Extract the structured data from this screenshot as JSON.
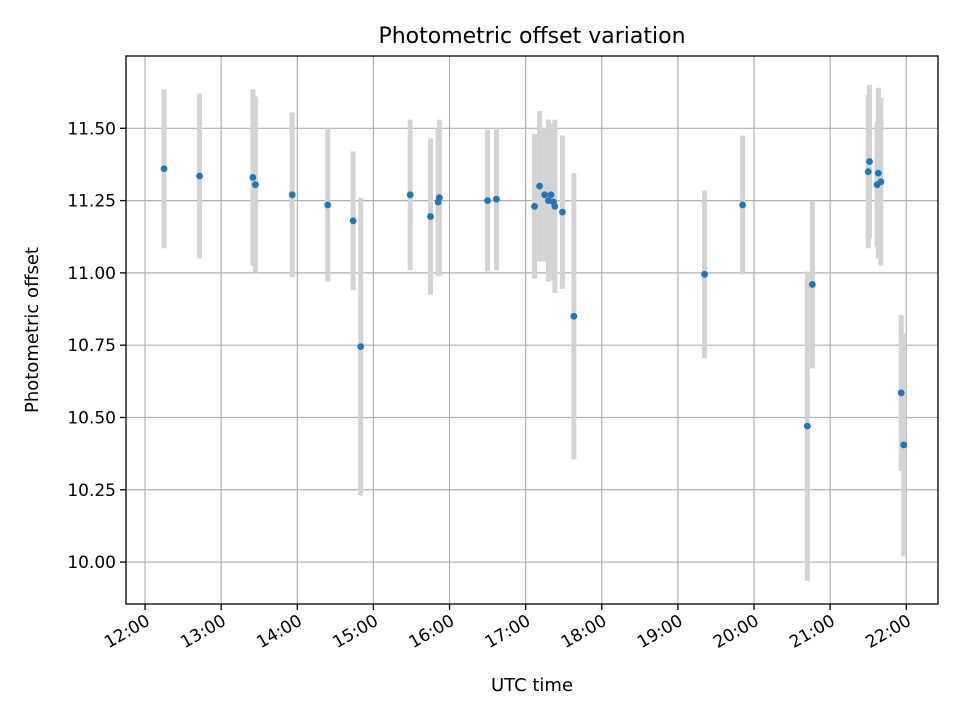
{
  "chart_data": {
    "type": "scatter",
    "title": "Photometric offset variation",
    "xlabel": "UTC time",
    "ylabel": "Photometric offset",
    "x_ticks": [
      "12:00",
      "13:00",
      "14:00",
      "15:00",
      "16:00",
      "17:00",
      "18:00",
      "19:00",
      "20:00",
      "21:00",
      "22:00"
    ],
    "y_ticks": [
      "10.00",
      "10.25",
      "10.50",
      "10.75",
      "11.00",
      "11.25",
      "11.50"
    ],
    "xlim": [
      "11:45",
      "22:25"
    ],
    "ylim": [
      9.855,
      11.75
    ],
    "grid": true,
    "point_color": "#1f77b4",
    "errorbar_color": "#d3d3d3",
    "points": [
      {
        "t": "12:15",
        "y": 11.36,
        "yerr": 0.275
      },
      {
        "t": "12:43",
        "y": 11.335,
        "yerr": 0.285
      },
      {
        "t": "13:25",
        "y": 11.33,
        "yerr": 0.305
      },
      {
        "t": "13:27",
        "y": 11.305,
        "yerr": 0.305
      },
      {
        "t": "13:56",
        "y": 11.27,
        "yerr": 0.285
      },
      {
        "t": "14:24",
        "y": 11.235,
        "yerr": 0.265
      },
      {
        "t": "14:44",
        "y": 11.18,
        "yerr": 0.24
      },
      {
        "t": "14:50",
        "y": 10.745,
        "yerr": 0.515
      },
      {
        "t": "15:29",
        "y": 11.27,
        "yerr": 0.26
      },
      {
        "t": "15:45",
        "y": 11.195,
        "yerr": 0.27
      },
      {
        "t": "15:51",
        "y": 11.245,
        "yerr": 0.255
      },
      {
        "t": "15:52",
        "y": 11.26,
        "yerr": 0.27
      },
      {
        "t": "16:30",
        "y": 11.25,
        "yerr": 0.245
      },
      {
        "t": "16:37",
        "y": 11.255,
        "yerr": 0.245
      },
      {
        "t": "17:07",
        "y": 11.23,
        "yerr": 0.25
      },
      {
        "t": "17:11",
        "y": 11.3,
        "yerr": 0.26
      },
      {
        "t": "17:15",
        "y": 11.27,
        "yerr": 0.23
      },
      {
        "t": "17:18",
        "y": 11.25,
        "yerr": 0.28
      },
      {
        "t": "17:20",
        "y": 11.27,
        "yerr": 0.23
      },
      {
        "t": "17:22",
        "y": 11.245,
        "yerr": 0.27
      },
      {
        "t": "17:23",
        "y": 11.23,
        "yerr": 0.3
      },
      {
        "t": "17:29",
        "y": 11.21,
        "yerr": 0.265
      },
      {
        "t": "17:38",
        "y": 10.85,
        "yerr": 0.495
      },
      {
        "t": "19:21",
        "y": 10.995,
        "yerr": 0.29
      },
      {
        "t": "19:51",
        "y": 11.235,
        "yerr": 0.24
      },
      {
        "t": "20:42",
        "y": 10.47,
        "yerr": 0.535
      },
      {
        "t": "20:46",
        "y": 10.96,
        "yerr": 0.29
      },
      {
        "t": "21:30",
        "y": 11.35,
        "yerr": 0.265
      },
      {
        "t": "21:31",
        "y": 11.385,
        "yerr": 0.265
      },
      {
        "t": "21:37",
        "y": 11.305,
        "yerr": 0.215
      },
      {
        "t": "21:38",
        "y": 11.345,
        "yerr": 0.295
      },
      {
        "t": "21:40",
        "y": 11.315,
        "yerr": 0.29
      },
      {
        "t": "21:56",
        "y": 10.585,
        "yerr": 0.27
      },
      {
        "t": "21:58",
        "y": 10.405,
        "yerr": 0.385
      }
    ]
  }
}
